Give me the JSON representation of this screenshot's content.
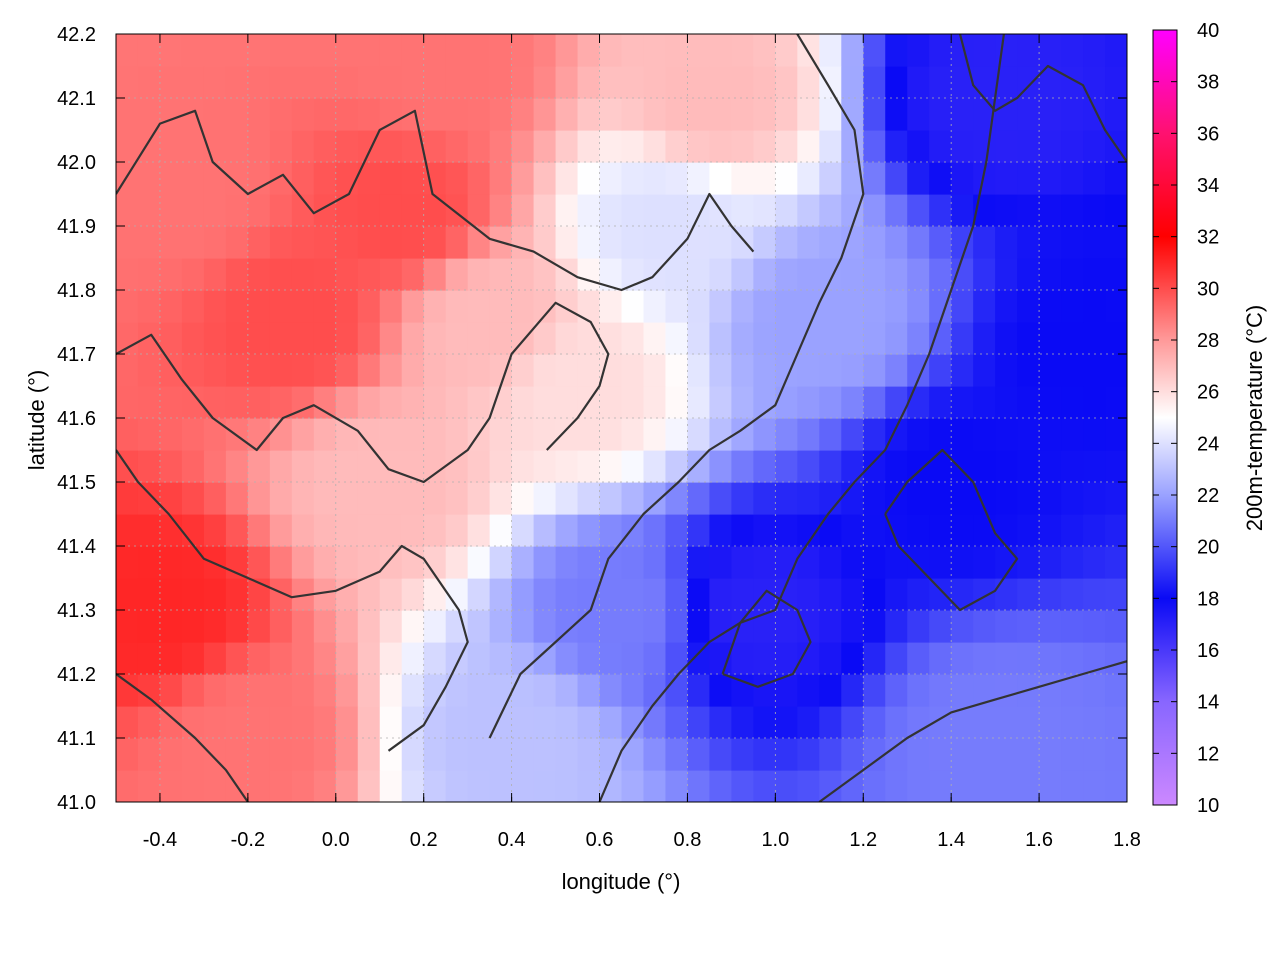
{
  "chart_data": {
    "type": "heatmap",
    "xlabel": "longitude (°)",
    "ylabel": "latitude (°)",
    "colorbar_label": "200m-temperature (°C)",
    "xlim": [
      -0.5,
      1.8
    ],
    "ylim": [
      41.0,
      42.2
    ],
    "x_ticks": [
      -0.4,
      -0.2,
      0.0,
      0.2,
      0.4,
      0.6,
      0.8,
      1.0,
      1.2,
      1.4,
      1.6,
      1.8
    ],
    "x_tick_labels": [
      "-0.4",
      "-0.2",
      "0.0",
      "0.2",
      "0.4",
      "0.6",
      "0.8",
      "1.0",
      "1.2",
      "1.4",
      "1.6",
      "1.8"
    ],
    "y_ticks": [
      41.0,
      41.1,
      41.2,
      41.3,
      41.4,
      41.5,
      41.6,
      41.7,
      41.8,
      41.9,
      42.0,
      42.1,
      42.2
    ],
    "y_tick_labels": [
      "41.0",
      "41.1",
      "41.2",
      "41.3",
      "41.4",
      "41.5",
      "41.6",
      "41.7",
      "41.8",
      "41.9",
      "42.0",
      "42.1",
      "42.2"
    ],
    "colorbar_range": [
      10,
      40
    ],
    "colorbar_ticks": [
      10,
      12,
      14,
      16,
      18,
      20,
      22,
      24,
      26,
      28,
      30,
      32,
      34,
      36,
      38,
      40
    ],
    "colorbar_tick_labels": [
      "10",
      "12",
      "14",
      "16",
      "18",
      "20",
      "22",
      "24",
      "26",
      "28",
      "30",
      "32",
      "34",
      "36",
      "38",
      "40"
    ],
    "colormap": [
      {
        "v": 10,
        "color": "#cc88ff"
      },
      {
        "v": 14,
        "color": "#8866ff"
      },
      {
        "v": 18,
        "color": "#0a0af5"
      },
      {
        "v": 22,
        "color": "#9aa2ff"
      },
      {
        "v": 25,
        "color": "#ffffff"
      },
      {
        "v": 28,
        "color": "#ff9999"
      },
      {
        "v": 32,
        "color": "#ff0000"
      },
      {
        "v": 36,
        "color": "#ff1170"
      },
      {
        "v": 40,
        "color": "#ff00ff"
      }
    ],
    "grid": true,
    "field": {
      "description_points": [
        {
          "x": -0.4,
          "y": 41.3,
          "t": 31
        },
        {
          "x": -0.1,
          "y": 41.75,
          "t": 30
        },
        {
          "x": 0.15,
          "y": 41.92,
          "t": 30
        },
        {
          "x": -0.35,
          "y": 41.95,
          "t": 29
        },
        {
          "x": 0.1,
          "y": 41.5,
          "t": 27
        },
        {
          "x": 0.35,
          "y": 41.75,
          "t": 27
        },
        {
          "x": 0.55,
          "y": 41.65,
          "t": 26
        },
        {
          "x": 0.85,
          "y": 42.1,
          "t": 27
        },
        {
          "x": 0.4,
          "y": 41.1,
          "t": 23
        },
        {
          "x": 0.65,
          "y": 41.3,
          "t": 21
        },
        {
          "x": 0.95,
          "y": 41.3,
          "t": 17
        },
        {
          "x": 1.1,
          "y": 41.75,
          "t": 22
        },
        {
          "x": 1.4,
          "y": 41.5,
          "t": 18
        },
        {
          "x": 1.5,
          "y": 42.1,
          "t": 17
        },
        {
          "x": 1.7,
          "y": 41.7,
          "t": 18
        },
        {
          "x": 1.5,
          "y": 41.1,
          "t": 21
        },
        {
          "x": 0.75,
          "y": 41.9,
          "t": 24
        },
        {
          "x": -0.2,
          "y": 41.1,
          "t": 29
        },
        {
          "x": 0.25,
          "y": 42.15,
          "t": 29
        }
      ]
    },
    "contours": [
      {
        "level": 28,
        "points": [
          [
            -0.5,
            41.95
          ],
          [
            -0.4,
            42.06
          ],
          [
            -0.32,
            42.08
          ],
          [
            -0.28,
            42.0
          ],
          [
            -0.2,
            41.95
          ],
          [
            -0.12,
            41.98
          ],
          [
            -0.05,
            41.92
          ],
          [
            0.03,
            41.95
          ],
          [
            0.1,
            42.05
          ],
          [
            0.18,
            42.08
          ],
          [
            0.22,
            41.95
          ],
          [
            0.35,
            41.88
          ],
          [
            0.45,
            41.86
          ],
          [
            0.55,
            41.82
          ],
          [
            0.65,
            41.8
          ],
          [
            0.72,
            41.82
          ],
          [
            0.8,
            41.88
          ],
          [
            0.85,
            41.95
          ],
          [
            0.9,
            41.9
          ],
          [
            0.95,
            41.86
          ]
        ]
      },
      {
        "level": 29,
        "points": [
          [
            -0.5,
            41.7
          ],
          [
            -0.42,
            41.73
          ],
          [
            -0.35,
            41.66
          ],
          [
            -0.28,
            41.6
          ],
          [
            -0.18,
            41.55
          ],
          [
            -0.12,
            41.6
          ],
          [
            -0.05,
            41.62
          ],
          [
            0.05,
            41.58
          ],
          [
            0.12,
            41.52
          ],
          [
            0.2,
            41.5
          ],
          [
            0.3,
            41.55
          ],
          [
            0.35,
            41.6
          ],
          [
            0.4,
            41.7
          ],
          [
            0.5,
            41.78
          ],
          [
            0.58,
            41.75
          ],
          [
            0.62,
            41.7
          ],
          [
            0.6,
            41.65
          ],
          [
            0.55,
            41.6
          ],
          [
            0.48,
            41.55
          ]
        ]
      },
      {
        "level": 26,
        "points": [
          [
            -0.5,
            41.2
          ],
          [
            -0.42,
            41.16
          ],
          [
            -0.32,
            41.1
          ],
          [
            -0.25,
            41.05
          ],
          [
            -0.2,
            41.0
          ]
        ]
      },
      {
        "level": 27,
        "points": [
          [
            -0.5,
            41.55
          ],
          [
            -0.45,
            41.5
          ],
          [
            -0.38,
            41.45
          ],
          [
            -0.3,
            41.38
          ],
          [
            -0.2,
            41.35
          ],
          [
            -0.1,
            41.32
          ],
          [
            0.0,
            41.33
          ],
          [
            0.1,
            41.36
          ],
          [
            0.15,
            41.4
          ],
          [
            0.2,
            41.38
          ],
          [
            0.28,
            41.3
          ],
          [
            0.3,
            41.25
          ],
          [
            0.25,
            41.18
          ],
          [
            0.2,
            41.12
          ],
          [
            0.12,
            41.08
          ]
        ]
      },
      {
        "level": 24,
        "points": [
          [
            0.35,
            41.1
          ],
          [
            0.42,
            41.2
          ],
          [
            0.5,
            41.25
          ],
          [
            0.58,
            41.3
          ],
          [
            0.62,
            41.38
          ],
          [
            0.7,
            41.45
          ],
          [
            0.78,
            41.5
          ],
          [
            0.85,
            41.55
          ],
          [
            0.92,
            41.58
          ],
          [
            1.0,
            41.62
          ],
          [
            1.05,
            41.7
          ],
          [
            1.1,
            41.78
          ],
          [
            1.15,
            41.85
          ],
          [
            1.2,
            41.95
          ],
          [
            1.18,
            42.05
          ],
          [
            1.12,
            42.12
          ],
          [
            1.05,
            42.2
          ]
        ]
      },
      {
        "level": 21,
        "points": [
          [
            0.6,
            41.0
          ],
          [
            0.65,
            41.08
          ],
          [
            0.72,
            41.15
          ],
          [
            0.78,
            41.2
          ],
          [
            0.85,
            41.25
          ],
          [
            0.92,
            41.28
          ],
          [
            1.0,
            41.3
          ],
          [
            1.05,
            41.38
          ],
          [
            1.12,
            41.45
          ],
          [
            1.18,
            41.5
          ],
          [
            1.25,
            41.55
          ],
          [
            1.3,
            41.62
          ],
          [
            1.35,
            41.7
          ],
          [
            1.4,
            41.8
          ],
          [
            1.45,
            41.9
          ],
          [
            1.48,
            42.0
          ],
          [
            1.5,
            42.1
          ],
          [
            1.52,
            42.2
          ]
        ]
      },
      {
        "level": 18,
        "points": [
          [
            0.88,
            41.2
          ],
          [
            0.92,
            41.28
          ],
          [
            0.98,
            41.33
          ],
          [
            1.05,
            41.3
          ],
          [
            1.08,
            41.25
          ],
          [
            1.04,
            41.2
          ],
          [
            0.96,
            41.18
          ],
          [
            0.88,
            41.2
          ]
        ]
      },
      {
        "level": 18,
        "points": [
          [
            1.25,
            41.45
          ],
          [
            1.3,
            41.5
          ],
          [
            1.38,
            41.55
          ],
          [
            1.45,
            41.5
          ],
          [
            1.5,
            41.42
          ],
          [
            1.55,
            41.38
          ],
          [
            1.5,
            41.33
          ],
          [
            1.42,
            41.3
          ],
          [
            1.35,
            41.35
          ],
          [
            1.28,
            41.4
          ],
          [
            1.25,
            41.45
          ]
        ]
      },
      {
        "level": 22,
        "points": [
          [
            1.1,
            41.0
          ],
          [
            1.2,
            41.05
          ],
          [
            1.3,
            41.1
          ],
          [
            1.4,
            41.14
          ],
          [
            1.5,
            41.16
          ],
          [
            1.6,
            41.18
          ],
          [
            1.7,
            41.2
          ],
          [
            1.8,
            41.22
          ]
        ]
      },
      {
        "level": 18,
        "points": [
          [
            1.42,
            42.2
          ],
          [
            1.45,
            42.12
          ],
          [
            1.5,
            42.08
          ],
          [
            1.55,
            42.1
          ],
          [
            1.62,
            42.15
          ],
          [
            1.7,
            42.12
          ],
          [
            1.75,
            42.05
          ],
          [
            1.8,
            42.0
          ]
        ]
      }
    ]
  }
}
